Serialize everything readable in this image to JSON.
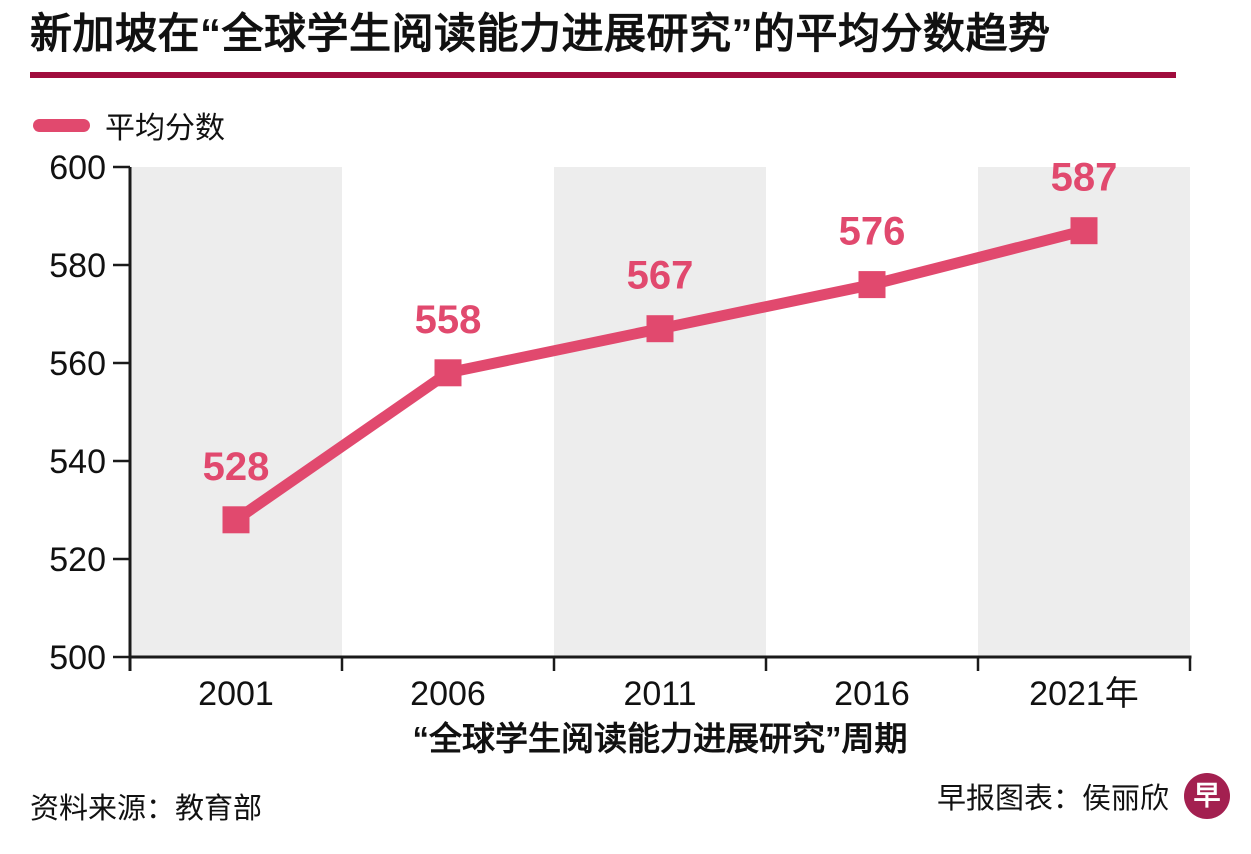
{
  "header": {
    "title": "新加坡在“全球学生阅读能力进展研究”的平均分数趋势"
  },
  "legend": {
    "label": "平均分数"
  },
  "chart_data": {
    "type": "line",
    "title": "新加坡在“全球学生阅读能力进展研究”的平均分数趋势",
    "categories": [
      "2001",
      "2006",
      "2011",
      "2016",
      "2021年"
    ],
    "series": [
      {
        "name": "平均分数",
        "values": [
          528,
          558,
          567,
          576,
          587
        ]
      }
    ],
    "data_labels": [
      "528",
      "558",
      "567",
      "576",
      "587"
    ],
    "xlabel": "“全球学生阅读能力进展研究”周期",
    "ylabel": "",
    "ylim": [
      500,
      600
    ],
    "yticks": [
      500,
      520,
      540,
      560,
      580,
      600
    ],
    "grid": false,
    "legend_position": "top-left",
    "marker": "square",
    "shaded_category_slots": [
      0,
      2,
      4
    ]
  },
  "footer": {
    "source": "资料来源：教育部",
    "credit": "早报图表：侯丽欣",
    "logo_glyph": "早"
  },
  "colors": {
    "accent_pink": "#e1496e",
    "rule_crimson": "#a00d3d",
    "logo_red": "#a32050",
    "band_gray": "#ededed",
    "axis_black": "#1a1a1a",
    "text_black": "#111111"
  }
}
